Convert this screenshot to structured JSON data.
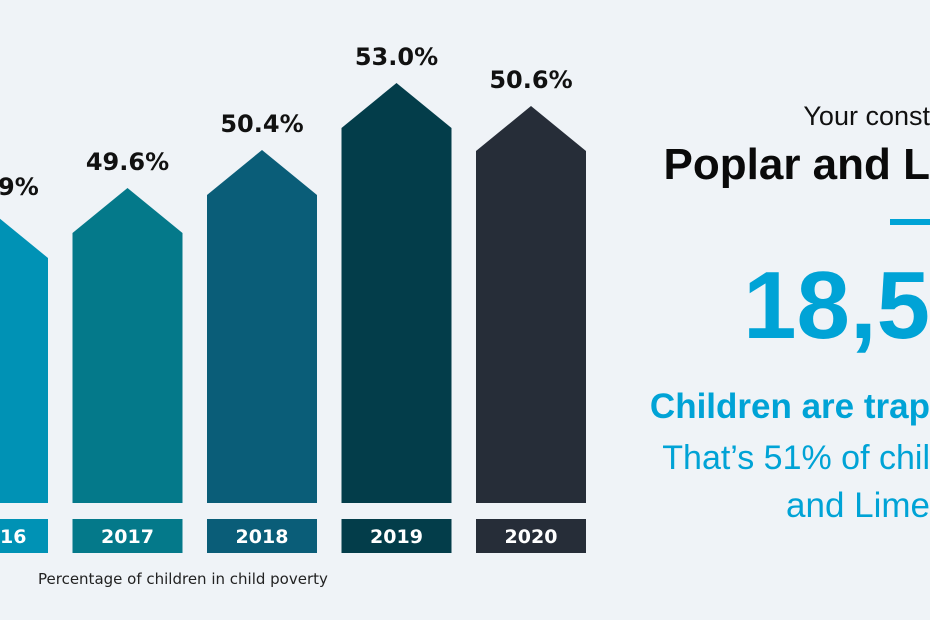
{
  "chart_data": {
    "type": "bar",
    "categories": [
      "16",
      "2017",
      "2018",
      "2019",
      "2020"
    ],
    "values": [
      null,
      49.6,
      50.4,
      53.0,
      50.6
    ],
    "value_labels": [
      "9%",
      "49.6%",
      "50.4%",
      "53.0%",
      "50.6%"
    ],
    "colors": [
      "#0092b5",
      "#04798a",
      "#0a5d78",
      "#033d4a",
      "#262d38"
    ],
    "xlabel": "Percentage of children in child poverty",
    "ylabel": "",
    "grid": false
  },
  "panel": {
    "line1": "Your const",
    "line2": "Poplar and L",
    "big_number": "18,5",
    "line3": "Children are trap",
    "line4": "That’s 51% of chil",
    "line5": "and Lime",
    "accent_color": "#00a3d6"
  }
}
